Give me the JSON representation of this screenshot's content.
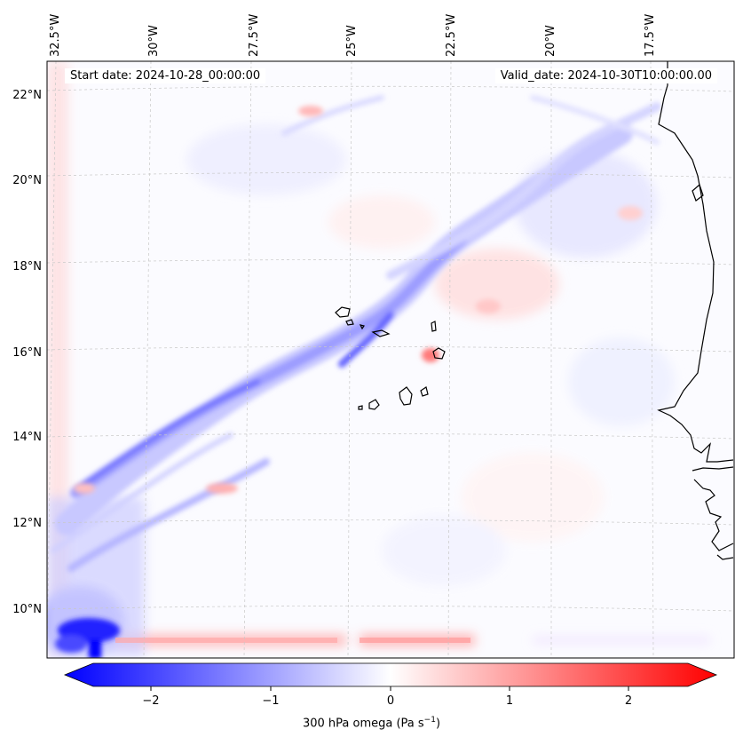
{
  "map": {
    "lon_ticks": [
      "32.5°W",
      "30°W",
      "27.5°W",
      "25°W",
      "22.5°W",
      "20°W",
      "17.5°W"
    ],
    "lat_ticks": [
      "22°N",
      "20°N",
      "18°N",
      "16°N",
      "14°N",
      "12°N",
      "10°N"
    ],
    "field": "300 hPa omega",
    "coastline_color": "#000000",
    "gridline_style": "dashed light gray",
    "colormap": "bwr (blue negative, white zero, red positive)"
  },
  "annotations": {
    "start_date": "Start date: 2024-10-28_00:00:00",
    "valid_date": "Valid_date: 2024-10-30T10:00:00.00"
  },
  "colorbar": {
    "ticks": [
      "−2",
      "−1",
      "0",
      "1",
      "2"
    ],
    "tick_values": [
      -2,
      -1,
      0,
      1,
      2
    ],
    "range": [
      -2.6,
      2.6
    ],
    "extend": "both",
    "label": "300 hPa omega (Pa s",
    "label_exponent": "−1",
    "label_close": ")",
    "color_min": "#0000ff",
    "color_mid": "#ffffff",
    "color_max": "#ff0000"
  }
}
